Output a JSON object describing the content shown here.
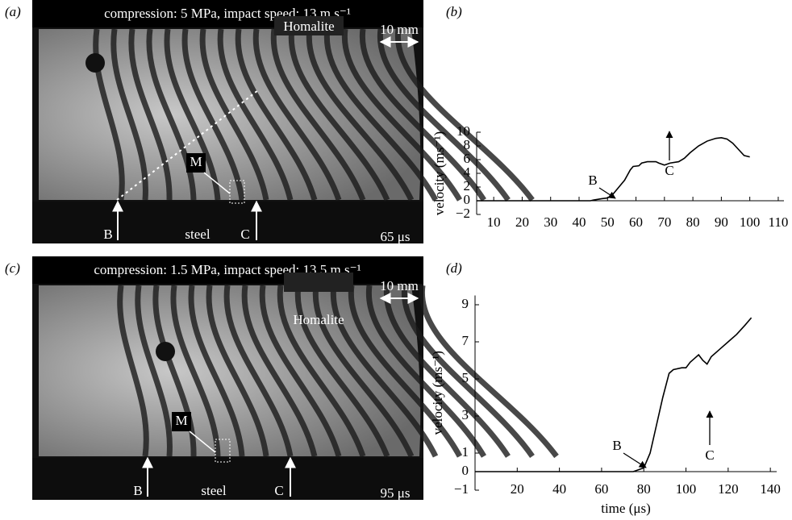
{
  "photo_panels": [
    {
      "label": "(a)",
      "caption": "compression: 5 MPa, impact speed: 13 m s⁻¹",
      "material": "Homalite",
      "scale": "10 mm",
      "marker": "M",
      "arrow_b": "B",
      "arrow_c": "C",
      "base": "steel",
      "time": "65 μs"
    },
    {
      "label": "(c)",
      "caption": "compression: 1.5 MPa, impact speed: 13.5 m s⁻¹",
      "material": "Homalite",
      "scale": "10 mm",
      "marker": "M",
      "arrow_b": "B",
      "arrow_c": "C",
      "base": "steel",
      "time": "95 μs"
    }
  ],
  "chart_data": [
    {
      "type": "line",
      "panel_label": "(b)",
      "y_label": "velocity (ms⁻¹)",
      "color": "#000000",
      "x": [
        4,
        44,
        45,
        48,
        50,
        52,
        54,
        56,
        58,
        59,
        61,
        62,
        64,
        67,
        68,
        70,
        72,
        75,
        77,
        79,
        82,
        85,
        88,
        90,
        92,
        94,
        96,
        98,
        100
      ],
      "values": [
        0,
        0,
        0.1,
        0.3,
        0.4,
        1,
        2,
        3,
        4.5,
        5,
        5.1,
        5.5,
        5.7,
        5.7,
        5.5,
        5.2,
        5.5,
        5.7,
        6.2,
        7,
        8,
        8.7,
        9.1,
        9.2,
        9,
        8.4,
        7.5,
        6.6,
        6.4
      ],
      "xlim": [
        4,
        112
      ],
      "ylim": [
        -2,
        10
      ],
      "xticks": [
        10,
        20,
        30,
        40,
        50,
        60,
        70,
        80,
        90,
        100,
        110
      ],
      "yticks": [
        {
          "value": -2,
          "label": "−2"
        },
        0,
        2,
        4,
        6,
        8,
        10
      ],
      "annotations": [
        "B",
        "C"
      ]
    },
    {
      "type": "line",
      "panel_label": "(d)",
      "x_label": "time (μs)",
      "y_label": "velocity (ms⁻¹)",
      "color": "#000000",
      "x": [
        0,
        75,
        80,
        83,
        86,
        89,
        92,
        94,
        98,
        100,
        102,
        104,
        106,
        108,
        110,
        112,
        116,
        120,
        124,
        128,
        131
      ],
      "values": [
        0,
        0,
        0.2,
        1,
        2.5,
        4,
        5.3,
        5.5,
        5.6,
        5.6,
        5.9,
        6.1,
        6.3,
        6,
        5.8,
        6.2,
        6.6,
        7,
        7.4,
        7.9,
        8.3
      ],
      "xlim": [
        0,
        143
      ],
      "ylim": [
        -1,
        9.5
      ],
      "xticks": [
        20,
        40,
        60,
        80,
        100,
        120,
        140
      ],
      "yticks": [
        {
          "value": -1,
          "label": "−1"
        },
        0,
        1,
        3,
        5,
        7,
        9
      ],
      "annotations": [
        "B",
        "C"
      ]
    }
  ]
}
